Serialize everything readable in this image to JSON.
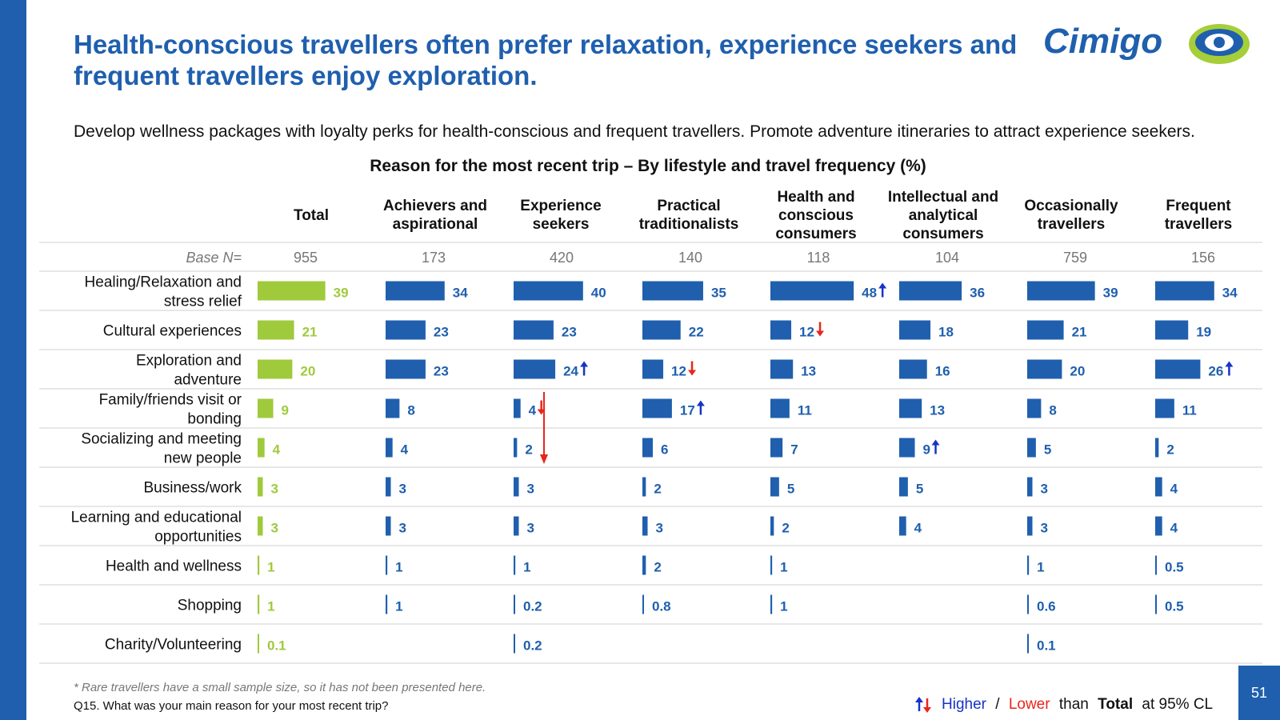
{
  "title": "Health-conscious travellers often prefer relaxation, experience seekers and frequent travellers enjoy exploration.",
  "subtitle": "Develop wellness packages with loyalty perks for health-conscious and frequent travellers. Promote adventure itineraries to attract experience seekers.",
  "logo": {
    "text": "Cimigo"
  },
  "footnote": "* Rare travellers have a small sample size, so it has not been presented here.",
  "question": "Q15. What was your main reason for your most recent trip?",
  "legend": {
    "higher": "Higher",
    "slash": " / ",
    "lower": "Lower",
    "than": " than ",
    "total": "Total",
    "suffix": " at 95% CL"
  },
  "page_number": "51",
  "colors": {
    "brand_blue": "#1f5fae",
    "total_green": "#9fca3c",
    "higher_arrow": "#1633c8",
    "lower_arrow": "#e8261c",
    "logo_green": "#a6ce39"
  },
  "chart_data": {
    "type": "table",
    "title": "Reason for the most recent trip – By lifestyle and travel frequency (%)",
    "base_label": "Base N=",
    "columns": [
      {
        "name": "Total",
        "base": "955"
      },
      {
        "name": "Achievers and aspirational",
        "base": "173"
      },
      {
        "name": "Experience seekers",
        "base": "420"
      },
      {
        "name": "Practical traditionalists",
        "base": "140"
      },
      {
        "name": "Health and conscious consumers",
        "base": "118"
      },
      {
        "name": "Intellectual and analytical consumers",
        "base": "104"
      },
      {
        "name": "Occasionally travellers",
        "base": "759"
      },
      {
        "name": "Frequent travellers",
        "base": "156"
      }
    ],
    "rows": [
      {
        "label": "Healing/Relaxation and stress relief",
        "values": [
          "39",
          "34",
          "40",
          "35",
          "48",
          "36",
          "39",
          "34"
        ],
        "sig": [
          null,
          null,
          null,
          null,
          "up",
          null,
          null,
          null
        ]
      },
      {
        "label": "Cultural experiences",
        "values": [
          "21",
          "23",
          "23",
          "22",
          "12",
          "18",
          "21",
          "19"
        ],
        "sig": [
          null,
          null,
          null,
          null,
          "down",
          null,
          null,
          null
        ]
      },
      {
        "label": "Exploration and adventure",
        "values": [
          "20",
          "23",
          "24",
          "12",
          "13",
          "16",
          "20",
          "26"
        ],
        "sig": [
          null,
          null,
          "up",
          "down",
          null,
          null,
          null,
          "up"
        ]
      },
      {
        "label": "Family/friends visit or bonding",
        "values": [
          "9",
          "8",
          "4",
          "17",
          "11",
          "13",
          "8",
          "11"
        ],
        "sig": [
          null,
          null,
          "down",
          "up",
          null,
          null,
          null,
          null
        ]
      },
      {
        "label": "Socializing and meeting new people",
        "values": [
          "4",
          "4",
          "2",
          "6",
          "7",
          "9",
          "5",
          "2"
        ],
        "sig": [
          null,
          null,
          null,
          null,
          null,
          "up",
          null,
          null
        ]
      },
      {
        "label": "Business/work",
        "values": [
          "3",
          "3",
          "3",
          "2",
          "5",
          "5",
          "3",
          "4"
        ],
        "sig": [
          null,
          null,
          null,
          null,
          null,
          null,
          null,
          null
        ]
      },
      {
        "label": "Learning and educational opportunities",
        "values": [
          "3",
          "3",
          "3",
          "3",
          "2",
          "4",
          "3",
          "4"
        ],
        "sig": [
          null,
          null,
          null,
          null,
          null,
          null,
          null,
          null
        ]
      },
      {
        "label": "Health and wellness",
        "values": [
          "1",
          "1",
          "1",
          "2",
          "1",
          null,
          "1",
          "0.5"
        ],
        "sig": [
          null,
          null,
          null,
          null,
          null,
          null,
          null,
          null
        ]
      },
      {
        "label": "Shopping",
        "values": [
          "1",
          "1",
          "0.2",
          "0.8",
          "1",
          null,
          "0.6",
          "0.5"
        ],
        "sig": [
          null,
          null,
          null,
          null,
          null,
          null,
          null,
          null
        ]
      },
      {
        "label": "Charity/Volunteering",
        "values": [
          "0.1",
          null,
          "0.2",
          null,
          null,
          null,
          "0.1",
          null
        ],
        "sig": [
          null,
          null,
          null,
          null,
          null,
          null,
          null,
          null
        ]
      }
    ]
  }
}
